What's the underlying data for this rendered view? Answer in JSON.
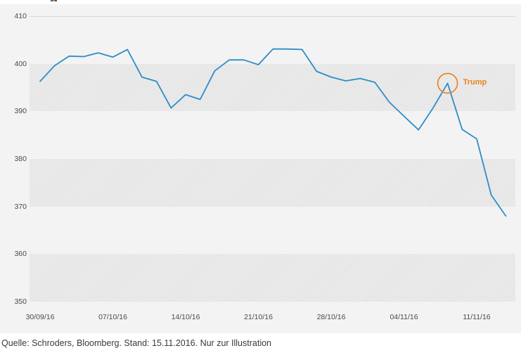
{
  "chart_data": {
    "type": "line",
    "title": "",
    "xlabel": "",
    "ylabel": "",
    "legend": "none",
    "grid": "horizontal-bands",
    "ylim": [
      350,
      410
    ],
    "y_ticks": [
      410,
      400,
      390,
      380,
      370,
      360,
      350
    ],
    "bands": [
      [
        390,
        400
      ],
      [
        370,
        380
      ],
      [
        350,
        360
      ]
    ],
    "x": [
      "30/09/16",
      "03/10/16",
      "04/10/16",
      "05/10/16",
      "06/10/16",
      "07/10/16",
      "10/10/16",
      "11/10/16",
      "12/10/16",
      "13/10/16",
      "14/10/16",
      "17/10/16",
      "18/10/16",
      "19/10/16",
      "20/10/16",
      "21/10/16",
      "24/10/16",
      "25/10/16",
      "26/10/16",
      "27/10/16",
      "28/10/16",
      "31/10/16",
      "01/11/16",
      "02/11/16",
      "03/11/16",
      "04/11/16",
      "07/11/16",
      "08/11/16",
      "09/11/16",
      "10/11/16",
      "11/11/16",
      "14/11/16",
      "15/11/16"
    ],
    "x_ticks": [
      {
        "index": 0,
        "label": "30/09/16"
      },
      {
        "index": 5,
        "label": "07/10/16"
      },
      {
        "index": 10,
        "label": "14/10/16"
      },
      {
        "index": 15,
        "label": "21/10/16"
      },
      {
        "index": 20,
        "label": "28/10/16"
      },
      {
        "index": 25,
        "label": "04/11/16"
      },
      {
        "index": 30,
        "label": "11/11/16"
      }
    ],
    "series": [
      {
        "name": "index-level",
        "color": "#2e8dc8",
        "values": [
          396.3,
          399.6,
          401.6,
          401.5,
          402.3,
          401.4,
          403.0,
          397.2,
          396.3,
          390.7,
          393.5,
          392.5,
          398.5,
          400.8,
          400.8,
          399.8,
          403.1,
          403.1,
          403.0,
          398.4,
          397.2,
          396.4,
          396.9,
          396.1,
          391.9,
          389.0,
          386.1,
          390.7,
          395.9,
          386.2,
          384.2,
          372.4,
          368.0
        ]
      }
    ],
    "annotation": {
      "label": "Trump",
      "point_index": 28,
      "point_date": "09/11/16",
      "color": "#e8821e"
    }
  },
  "footer": {
    "source_note": "Quelle: Schroders, Bloomberg. Stand: 15.11.2016. Nur zur Illustration"
  },
  "colors": {
    "line": "#2e8dc8",
    "annotation": "#e8821e",
    "chart_background": "#f3f3f3",
    "band": "#e6e6e6",
    "gridline": "#d9d9d9",
    "axis_text": "#4a4a4a"
  }
}
